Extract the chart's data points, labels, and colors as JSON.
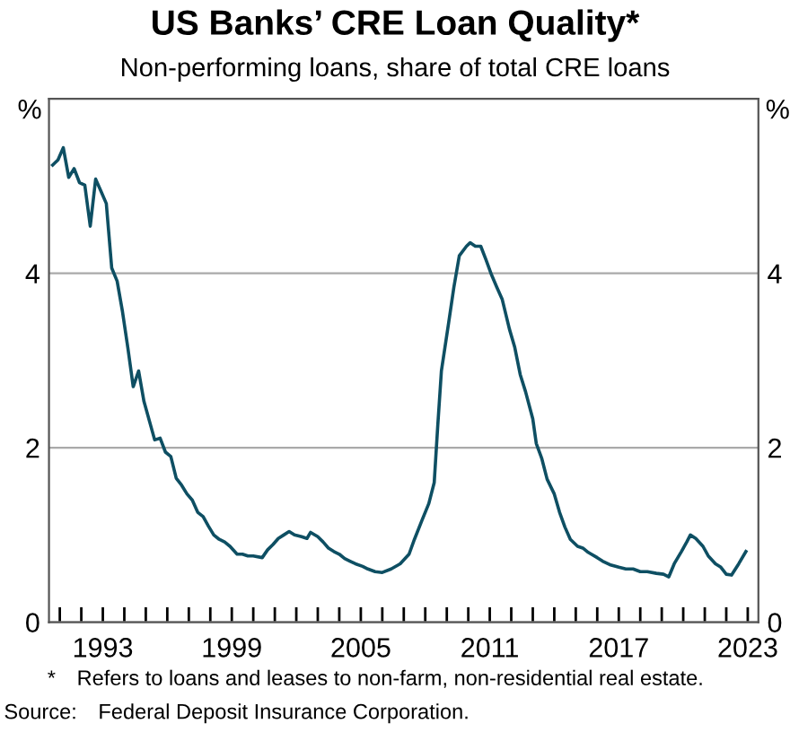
{
  "chart_data": {
    "type": "line",
    "title": "US Banks’ CRE Loan Quality*",
    "subtitle": "Non-performing loans, share of total CRE loans",
    "ylabel": "%",
    "y2label": "%",
    "annotations": [
      "* Refers to loans and leases to non-farm, non-residential real estate.",
      "Source: Federal Deposit Insurance Corporation."
    ],
    "series": [
      {
        "color": "#0e4f63",
        "x": [
          "1990-09",
          "1990-12",
          "1991-03",
          "1991-06",
          "1991-09",
          "1991-12",
          "1992-03",
          "1992-06",
          "1992-09",
          "1992-12",
          "1993-03",
          "1993-06",
          "1993-09",
          "1993-12",
          "1994-03",
          "1994-06",
          "1994-09",
          "1994-12",
          "1995-06",
          "1995-09",
          "1995-12",
          "1996-03",
          "1996-06",
          "1996-09",
          "1996-12",
          "1997-03",
          "1997-06",
          "1997-09",
          "1997-12",
          "1998-03",
          "1998-06",
          "1998-09",
          "1998-12",
          "1999-04",
          "1999-07",
          "1999-10",
          "2000-01",
          "2000-06",
          "2000-09",
          "2000-12",
          "2001-03",
          "2001-06",
          "2001-09",
          "2001-12",
          "2002-04",
          "2002-07",
          "2002-09",
          "2003-01",
          "2003-04",
          "2003-07",
          "2003-10",
          "2004-01",
          "2004-04",
          "2004-07",
          "2004-10",
          "2005-02",
          "2005-05",
          "2005-09",
          "2006-01",
          "2006-06",
          "2006-11",
          "2007-04",
          "2007-07",
          "2007-11",
          "2008-03",
          "2008-06",
          "2008-08",
          "2008-10",
          "2009-02",
          "2009-05",
          "2009-08",
          "2009-12",
          "2010-02",
          "2010-05",
          "2010-08",
          "2010-11",
          "2011-02",
          "2011-05",
          "2011-08",
          "2011-12",
          "2012-03",
          "2012-06",
          "2012-09",
          "2013-01",
          "2013-03",
          "2013-06",
          "2013-09",
          "2014-01",
          "2014-04",
          "2014-07",
          "2014-10",
          "2015-02",
          "2015-05",
          "2015-08",
          "2016-01",
          "2016-04",
          "2016-08",
          "2017-01",
          "2017-05",
          "2017-09",
          "2018-01",
          "2018-05",
          "2018-10",
          "2019-02",
          "2019-05",
          "2019-08",
          "2019-12",
          "2020-03",
          "2020-05",
          "2020-08",
          "2020-12",
          "2021-03",
          "2021-07",
          "2021-10",
          "2022-01",
          "2022-04",
          "2022-08",
          "2022-12"
        ],
        "values": [
          5.24,
          5.3,
          5.44,
          5.1,
          5.2,
          5.04,
          5.01,
          4.54,
          5.08,
          4.94,
          4.8,
          4.06,
          3.91,
          3.56,
          3.15,
          2.7,
          2.88,
          2.53,
          2.09,
          2.11,
          1.95,
          1.9,
          1.65,
          1.57,
          1.47,
          1.4,
          1.26,
          1.21,
          1.1,
          1.0,
          0.95,
          0.92,
          0.87,
          0.78,
          0.78,
          0.76,
          0.76,
          0.74,
          0.83,
          0.89,
          0.96,
          1.0,
          1.04,
          1.0,
          0.98,
          0.96,
          1.03,
          0.98,
          0.92,
          0.85,
          0.81,
          0.78,
          0.73,
          0.7,
          0.67,
          0.64,
          0.61,
          0.58,
          0.57,
          0.61,
          0.67,
          0.78,
          0.95,
          1.16,
          1.36,
          1.6,
          2.26,
          2.88,
          3.43,
          3.84,
          4.2,
          4.31,
          4.35,
          4.31,
          4.31,
          4.15,
          3.98,
          3.84,
          3.7,
          3.36,
          3.15,
          2.84,
          2.64,
          2.33,
          2.05,
          1.88,
          1.64,
          1.47,
          1.26,
          1.09,
          0.95,
          0.87,
          0.85,
          0.8,
          0.74,
          0.7,
          0.66,
          0.63,
          0.61,
          0.61,
          0.58,
          0.58,
          0.56,
          0.55,
          0.52,
          0.67,
          0.81,
          0.92,
          1.0,
          0.96,
          0.87,
          0.76,
          0.67,
          0.63,
          0.55,
          0.54,
          0.67,
          0.81
        ]
      }
    ],
    "xlim": [
      "1990-07",
      "2023-07"
    ],
    "xticks": [
      {
        "value": "1991-01",
        "label": null
      },
      {
        "value": "1992-01",
        "label": null
      },
      {
        "value": "1993-01",
        "label": "1993"
      },
      {
        "value": "1994-01",
        "label": null
      },
      {
        "value": "1995-01",
        "label": null
      },
      {
        "value": "1996-01",
        "label": null
      },
      {
        "value": "1997-01",
        "label": null
      },
      {
        "value": "1998-01",
        "label": null
      },
      {
        "value": "1999-01",
        "label": "1999"
      },
      {
        "value": "2000-01",
        "label": null
      },
      {
        "value": "2001-01",
        "label": null
      },
      {
        "value": "2002-01",
        "label": null
      },
      {
        "value": "2003-01",
        "label": null
      },
      {
        "value": "2004-01",
        "label": null
      },
      {
        "value": "2005-01",
        "label": "2005"
      },
      {
        "value": "2006-01",
        "label": null
      },
      {
        "value": "2007-01",
        "label": null
      },
      {
        "value": "2008-01",
        "label": null
      },
      {
        "value": "2009-01",
        "label": null
      },
      {
        "value": "2010-01",
        "label": null
      },
      {
        "value": "2011-01",
        "label": "2011"
      },
      {
        "value": "2012-01",
        "label": null
      },
      {
        "value": "2013-01",
        "label": null
      },
      {
        "value": "2014-01",
        "label": null
      },
      {
        "value": "2015-01",
        "label": null
      },
      {
        "value": "2016-01",
        "label": null
      },
      {
        "value": "2017-01",
        "label": "2017"
      },
      {
        "value": "2018-01",
        "label": null
      },
      {
        "value": "2019-01",
        "label": null
      },
      {
        "value": "2020-01",
        "label": null
      },
      {
        "value": "2021-01",
        "label": null
      },
      {
        "value": "2022-01",
        "label": null
      },
      {
        "value": "2023-01",
        "label": "2023"
      }
    ],
    "ylim": [
      0,
      6
    ],
    "yticks": [
      0,
      2,
      4
    ],
    "y2lim": [
      0,
      6
    ],
    "y2ticks": [
      0,
      2,
      4
    ],
    "grid": "y",
    "legend": false,
    "line_style": "solid",
    "marker": "none"
  }
}
